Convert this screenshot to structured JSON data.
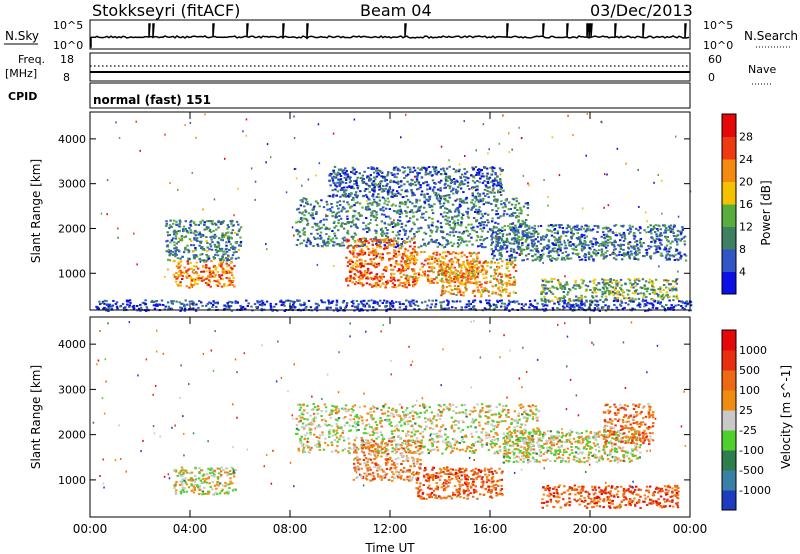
{
  "header": {
    "station": "Stokkseyri (fitACF)",
    "beam": "Beam 04",
    "date": "03/Dec/2013"
  },
  "panels": {
    "nsky_label": "N.Sky",
    "nsky_top": "10^5",
    "nsky_bottom": "10^0",
    "nsearch_label": "N.Search",
    "nsearch_top": "10^5",
    "nsearch_bottom": "10^0",
    "freq_label": "Freq.",
    "freq_unit": "[MHz]",
    "freq_top": "18",
    "freq_bottom": "8",
    "nave_label": "Nave",
    "nave_top": "60",
    "nave_bottom": "0",
    "cpid_label": "CPID",
    "cpid_value": "normal (fast) 151"
  },
  "chart_data": [
    {
      "type": "heatmap",
      "name": "power",
      "ylabel": "Slant Range [km]",
      "xlabel": "",
      "colorbar_label": "Power [dB]",
      "x_ticks": [
        "00:00",
        "04:00",
        "08:00",
        "12:00",
        "16:00",
        "20:00",
        "00:00"
      ],
      "xlim_hours": [
        0,
        24
      ],
      "y_ticks": [
        1000,
        2000,
        3000,
        4000
      ],
      "ylim": [
        180,
        4600
      ],
      "colorbar_ticks": [
        "4",
        "8",
        "12",
        "16",
        "20",
        "24",
        "28"
      ],
      "colorbar_colors": [
        "#0a10e6",
        "#2f56c4",
        "#3f7f62",
        "#58ad3c",
        "#f5c200",
        "#f58a10",
        "#ee3a12",
        "#e60808"
      ],
      "regions": [
        {
          "t0": 3.3,
          "t1": 5.8,
          "r0": 700,
          "r1": 1300,
          "level": 5.2
        },
        {
          "t0": 3.0,
          "t1": 6.0,
          "r0": 1300,
          "r1": 2200,
          "level": 2.0
        },
        {
          "t0": 8.2,
          "t1": 17.5,
          "r0": 1600,
          "r1": 2700,
          "level": 1.8
        },
        {
          "t0": 9.5,
          "t1": 16.5,
          "r0": 2700,
          "r1": 3400,
          "level": 1.2
        },
        {
          "t0": 10.2,
          "t1": 13.0,
          "r0": 700,
          "r1": 1800,
          "level": 5.5
        },
        {
          "t0": 12.5,
          "t1": 15.5,
          "r0": 800,
          "r1": 1500,
          "level": 5.0
        },
        {
          "t0": 14.0,
          "t1": 17.0,
          "r0": 500,
          "r1": 1300,
          "level": 4.5
        },
        {
          "t0": 16.0,
          "t1": 23.8,
          "r0": 1300,
          "r1": 2100,
          "level": 1.6
        },
        {
          "t0": 18.0,
          "t1": 23.5,
          "r0": 400,
          "r1": 900,
          "level": 2.8
        },
        {
          "t0": 0.2,
          "t1": 24.0,
          "r0": 180,
          "r1": 420,
          "level": 0.6
        }
      ]
    },
    {
      "type": "heatmap",
      "name": "velocity",
      "ylabel": "Slant Range [km]",
      "xlabel": "Time UT",
      "colorbar_label": "Velocity [m s^-1]",
      "x_ticks": [
        "00:00",
        "04:00",
        "08:00",
        "12:00",
        "16:00",
        "20:00",
        "00:00"
      ],
      "xlim_hours": [
        0,
        24
      ],
      "y_ticks": [
        1000,
        2000,
        3000,
        4000
      ],
      "ylim": [
        180,
        4600
      ],
      "colorbar_ticks": [
        "1000",
        "500",
        "100",
        "25",
        "-25",
        "-100",
        "-500",
        "-1000"
      ],
      "colorbar_colors": [
        "#1c3dbf",
        "#3a7fa6",
        "#2e7d4e",
        "#4fd02e",
        "#c9c9c9",
        "#f08c10",
        "#ee6a12",
        "#e83010",
        "#e60808"
      ],
      "regions": [
        {
          "t0": 3.3,
          "t1": 5.8,
          "r0": 700,
          "r1": 1300,
          "level": 4.0
        },
        {
          "t0": 8.2,
          "t1": 18.0,
          "r0": 1600,
          "r1": 2700,
          "level": 4.0
        },
        {
          "t0": 10.5,
          "t1": 13.2,
          "r0": 1000,
          "r1": 1900,
          "level": 5.3
        },
        {
          "t0": 13.0,
          "t1": 16.5,
          "r0": 600,
          "r1": 1300,
          "level": 6.3
        },
        {
          "t0": 16.5,
          "t1": 22.0,
          "r0": 1400,
          "r1": 2100,
          "level": 4.0
        },
        {
          "t0": 18.0,
          "t1": 23.5,
          "r0": 400,
          "r1": 900,
          "level": 6.4
        },
        {
          "t0": 20.5,
          "t1": 22.5,
          "r0": 1800,
          "r1": 2700,
          "level": 5.8
        }
      ]
    }
  ]
}
